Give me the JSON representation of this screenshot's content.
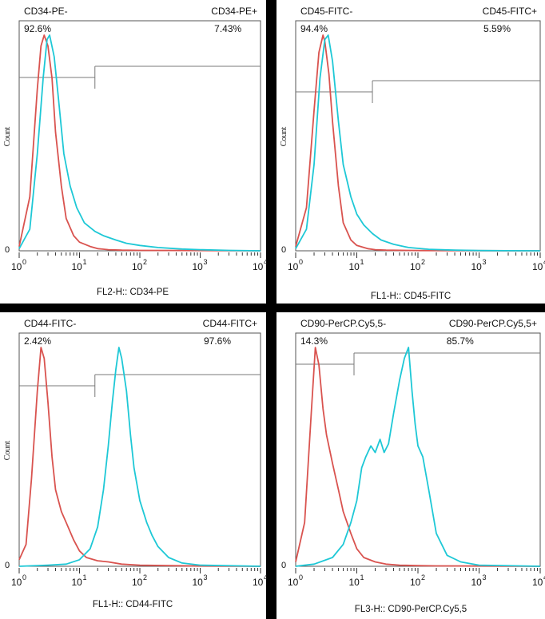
{
  "colors": {
    "control": "#d9534f",
    "stained": "#1ec8d6"
  },
  "axis": {
    "tick_base": "10",
    "tick_exponents": [
      "0",
      "1",
      "2",
      "3",
      "4"
    ],
    "zero_label": "0",
    "y_label": "Count"
  },
  "chart_data": [
    {
      "type": "line",
      "x_scale": "log",
      "xlim": [
        1,
        10000
      ],
      "ylim": [
        0,
        1
      ],
      "xlabel": "FL2-H:: CD34-PE",
      "ylabel": "Count",
      "gate_negative": {
        "label": "CD34-PE-",
        "percent": "92.6%",
        "range": [
          1,
          18
        ]
      },
      "gate_positive": {
        "label": "CD34-PE+",
        "percent": "7.43%",
        "range": [
          18,
          10000
        ]
      },
      "series": [
        {
          "color": "#d9534f",
          "x": [
            1,
            1.5,
            2,
            2.3,
            2.6,
            3,
            3.5,
            4,
            5,
            6,
            8,
            10,
            15,
            20,
            30,
            50,
            100,
            1000,
            10000
          ],
          "y": [
            0.02,
            0.25,
            0.75,
            0.95,
            1.0,
            0.95,
            0.8,
            0.55,
            0.3,
            0.15,
            0.07,
            0.04,
            0.02,
            0.01,
            0.005,
            0.003,
            0.002,
            0.001,
            0
          ]
        },
        {
          "color": "#1ec8d6",
          "x": [
            1,
            1.5,
            2,
            2.5,
            2.9,
            3.2,
            3.8,
            4.5,
            5.5,
            7,
            9,
            12,
            18,
            25,
            40,
            60,
            100,
            200,
            500,
            1000,
            3000,
            10000
          ],
          "y": [
            0.01,
            0.1,
            0.45,
            0.8,
            0.98,
            1.0,
            0.9,
            0.7,
            0.45,
            0.3,
            0.2,
            0.13,
            0.09,
            0.07,
            0.05,
            0.035,
            0.025,
            0.015,
            0.008,
            0.005,
            0.002,
            0
          ]
        }
      ]
    },
    {
      "type": "line",
      "x_scale": "log",
      "xlim": [
        1,
        10000
      ],
      "ylim": [
        0,
        1
      ],
      "xlabel": "FL1-H:: CD45-FITC",
      "ylabel": "Count",
      "gate_negative": {
        "label": "CD45-FITC-",
        "percent": "94.4%",
        "range": [
          1,
          18
        ]
      },
      "gate_positive": {
        "label": "CD45-FITC+",
        "percent": "5.59%",
        "range": [
          18,
          10000
        ]
      },
      "series": [
        {
          "color": "#d9534f",
          "x": [
            1,
            1.5,
            2,
            2.4,
            2.8,
            3,
            3.5,
            4,
            5,
            6,
            8,
            10,
            15,
            20,
            30,
            100,
            10000
          ],
          "y": [
            0.02,
            0.2,
            0.65,
            0.92,
            1.0,
            0.97,
            0.82,
            0.6,
            0.3,
            0.13,
            0.05,
            0.025,
            0.01,
            0.005,
            0.003,
            0.001,
            0
          ]
        },
        {
          "color": "#1ec8d6",
          "x": [
            1,
            1.5,
            2,
            2.5,
            3,
            3.4,
            4,
            5,
            6,
            8,
            10,
            13,
            18,
            25,
            40,
            70,
            150,
            400,
            1000,
            10000
          ],
          "y": [
            0.01,
            0.1,
            0.4,
            0.8,
            0.98,
            1.0,
            0.88,
            0.6,
            0.4,
            0.25,
            0.17,
            0.12,
            0.08,
            0.05,
            0.03,
            0.015,
            0.007,
            0.003,
            0.001,
            0
          ]
        }
      ]
    },
    {
      "type": "line",
      "x_scale": "log",
      "xlim": [
        1,
        10000
      ],
      "ylim": [
        0,
        1
      ],
      "xlabel": "FL1-H:: CD44-FITC",
      "ylabel": "Count",
      "gate_negative": {
        "label": "CD44-FITC-",
        "percent": "2.42%",
        "range": [
          1,
          18
        ]
      },
      "gate_positive": {
        "label": "CD44-FITC+",
        "percent": "97.6%",
        "range": [
          18,
          10000
        ]
      },
      "series": [
        {
          "color": "#d9534f",
          "x": [
            1,
            1.3,
            1.6,
            2,
            2.3,
            2.6,
            3,
            3.5,
            4,
            5,
            6,
            8,
            10,
            13,
            20,
            30,
            50,
            100,
            1000,
            10000
          ],
          "y": [
            0.03,
            0.1,
            0.4,
            0.8,
            1.0,
            0.95,
            0.75,
            0.5,
            0.35,
            0.25,
            0.2,
            0.12,
            0.07,
            0.04,
            0.025,
            0.02,
            0.01,
            0.005,
            0.001,
            0
          ]
        },
        {
          "color": "#1ec8d6",
          "x": [
            1,
            3,
            6,
            10,
            15,
            20,
            25,
            30,
            35,
            40,
            45,
            50,
            60,
            70,
            80,
            100,
            130,
            160,
            200,
            300,
            500,
            1000,
            10000
          ],
          "y": [
            0,
            0.005,
            0.01,
            0.03,
            0.08,
            0.18,
            0.35,
            0.55,
            0.75,
            0.9,
            1.0,
            0.95,
            0.8,
            0.6,
            0.45,
            0.3,
            0.2,
            0.14,
            0.09,
            0.04,
            0.015,
            0.005,
            0
          ]
        }
      ]
    },
    {
      "type": "line",
      "x_scale": "log",
      "xlim": [
        1,
        10000
      ],
      "ylim": [
        0,
        1
      ],
      "xlabel": "FL3-H:: CD90-PerCP.Cy5,5",
      "ylabel": "",
      "gate_negative": {
        "label": "CD90-PerCP.Cy5,5-",
        "percent": "14.3%",
        "range": [
          1,
          9
        ]
      },
      "gate_positive": {
        "label": "CD90-PerCP.Cy5,5+",
        "percent": "85.7%",
        "range": [
          9,
          10000
        ]
      },
      "series": [
        {
          "color": "#d9534f",
          "x": [
            1,
            1.4,
            1.8,
            2.1,
            2.4,
            2.8,
            3.2,
            4,
            5,
            6,
            8,
            10,
            13,
            20,
            30,
            50,
            100,
            200,
            1000,
            10000
          ],
          "y": [
            0.02,
            0.2,
            0.7,
            1.0,
            0.92,
            0.72,
            0.6,
            0.47,
            0.35,
            0.25,
            0.15,
            0.08,
            0.04,
            0.02,
            0.01,
            0.005,
            0.003,
            0.002,
            0.001,
            0
          ]
        },
        {
          "color": "#1ec8d6",
          "x": [
            1,
            2,
            4,
            6,
            8,
            10,
            12,
            14,
            17,
            20,
            24,
            28,
            33,
            40,
            50,
            60,
            70,
            80,
            90,
            100,
            120,
            150,
            200,
            300,
            500,
            1000,
            10000
          ],
          "y": [
            0,
            0.01,
            0.04,
            0.1,
            0.2,
            0.3,
            0.45,
            0.5,
            0.55,
            0.52,
            0.58,
            0.52,
            0.56,
            0.7,
            0.85,
            0.95,
            1.0,
            0.8,
            0.65,
            0.55,
            0.5,
            0.35,
            0.15,
            0.05,
            0.02,
            0.005,
            0
          ]
        }
      ]
    }
  ]
}
